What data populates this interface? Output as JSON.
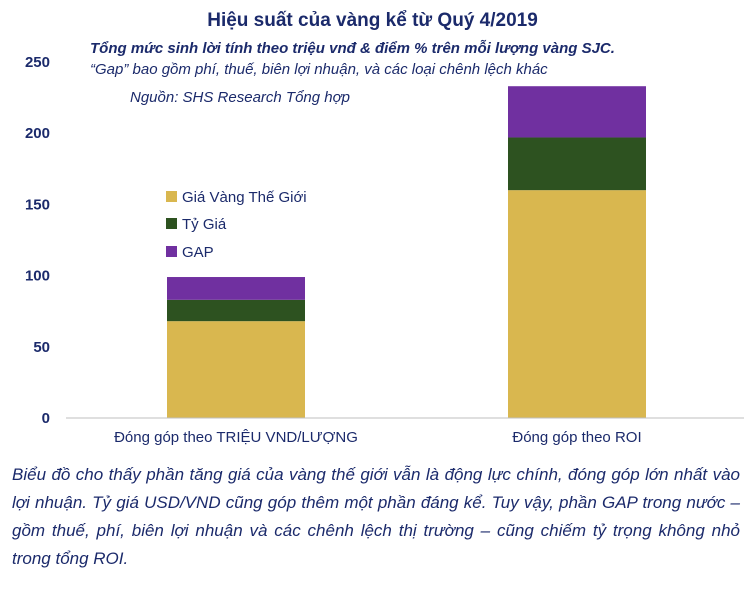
{
  "chart_data": {
    "type": "bar",
    "stacked": true,
    "title": "Hiệu suất của vàng kể từ Quý 4/2019",
    "subtitle": "Tổng mức sinh lời tính theo triệu vnđ & điểm % trên mỗi lượng vàng SJC.",
    "note": "“Gap” bao gồm phí, thuế, biên lợi nhuận, và các loại chênh lệch khác",
    "source": "Nguồn: SHS Research Tổng hợp",
    "categories": [
      "Đóng góp theo TRIỆU VND/LƯỢNG",
      "Đóng góp theo ROI"
    ],
    "series": [
      {
        "name": "Giá Vàng Thế Giới",
        "values": [
          68,
          160
        ],
        "color": "#d9b74f"
      },
      {
        "name": "Tỷ Giá",
        "values": [
          15,
          37
        ],
        "color": "#2d5220"
      },
      {
        "name": "GAP",
        "values": [
          16,
          36
        ],
        "color": "#7030a0"
      }
    ],
    "ylim": [
      0,
      250
    ],
    "yticks": [
      0,
      50,
      100,
      150,
      200,
      250
    ],
    "grid": false,
    "legend_position": "left"
  },
  "caption": "Biểu đồ cho thấy phần tăng giá của vàng thế giới vẫn là động lực chính, đóng góp lớn nhất vào lợi nhuận. Tỷ giá USD/VND cũng góp thêm một phần đáng kể. Tuy vậy, phần GAP trong nước – gồm thuế, phí, biên lợi nhuận và các chênh lệch thị trường – cũng chiếm tỷ trọng không nhỏ trong tổng ROI."
}
